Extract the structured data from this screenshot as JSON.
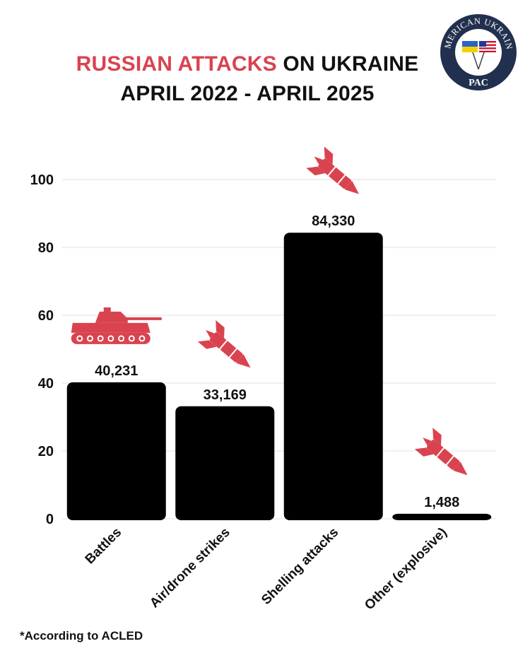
{
  "title": {
    "accent": "RUSSIAN ATTACKS",
    "rest": " ON UKRAINE",
    "line2": "APRIL 2022 - APRIL 2025"
  },
  "footnote": "*According to ACLED",
  "logo": {
    "text_top": "AMERICAN UKRAINE",
    "text_bottom": "PAC",
    "icon": "flags-icon"
  },
  "colors": {
    "accent": "#d9434f",
    "bar": "#000000",
    "text": "#111111",
    "grid": "#e2e2e2",
    "logo_navy": "#22304f"
  },
  "chart_data": {
    "type": "bar",
    "title": "RUSSIAN ATTACKS ON UKRAINE APRIL 2022 - APRIL 2025",
    "categories": [
      "Battles",
      "Air/drone strikes",
      "Shelling attacks",
      "Other (explosive)"
    ],
    "values": [
      40.231,
      33.169,
      84.33,
      1.488
    ],
    "data_labels": [
      "40,231",
      "33,169",
      "84,330",
      "1,488"
    ],
    "icons": [
      "tank-icon",
      "missile-icon",
      "missile-icon",
      "missile-icon"
    ],
    "yticks": [
      0,
      20,
      40,
      60,
      80,
      100
    ],
    "ylim": [
      0,
      100
    ],
    "xlabel": "",
    "ylabel": "",
    "grid": true
  }
}
